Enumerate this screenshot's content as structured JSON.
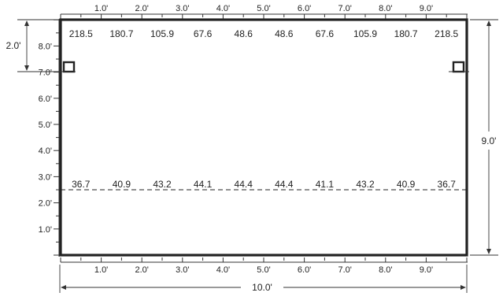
{
  "top_axis": {
    "ticks": [
      "1.0'",
      "2.0'",
      "3.0'",
      "4.0'",
      "5.0'",
      "6.0'",
      "7.0'",
      "8.0'",
      "9.0'"
    ]
  },
  "bottom_axis": {
    "ticks": [
      "1.0'",
      "2.0'",
      "3.0'",
      "4.0'",
      "5.0'",
      "6.0'",
      "7.0'",
      "8.0'",
      "9.0'"
    ]
  },
  "left_axis": {
    "ticks": [
      "1.0'",
      "2.0'",
      "3.0'",
      "4.0'",
      "5.0'",
      "6.0'",
      "7.0'",
      "8.0'"
    ]
  },
  "dimensions": {
    "width": "10.0'",
    "height": "9.0'",
    "top_offset": "2.0'"
  },
  "top_row_values": [
    "218.5",
    "180.7",
    "105.9",
    "67.6",
    "48.6",
    "48.6",
    "67.6",
    "105.9",
    "180.7",
    "218.5"
  ],
  "dashed_row_values": [
    "36.7",
    "40.9",
    "43.2",
    "44.1",
    "44.4",
    "44.4",
    "41.1",
    "43.2",
    "40.9",
    "36.7"
  ]
}
